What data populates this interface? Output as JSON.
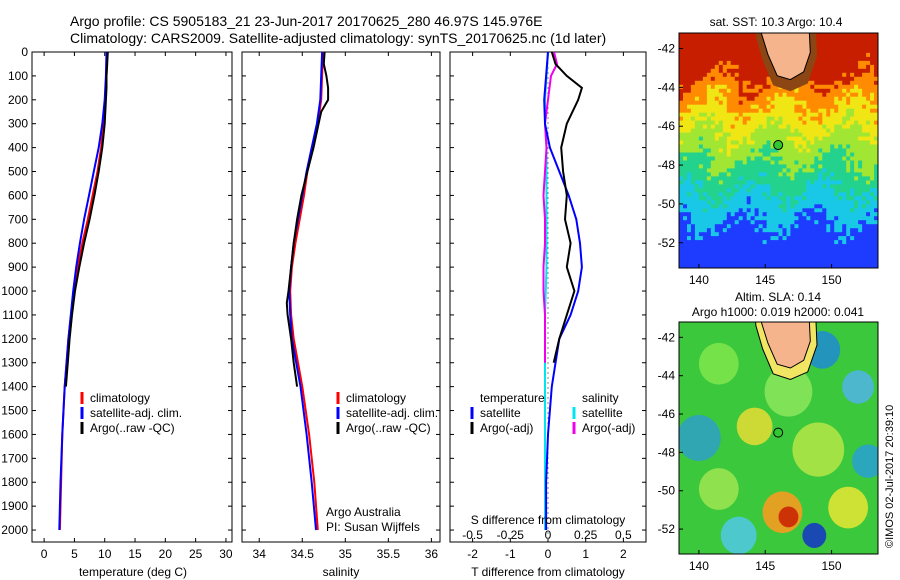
{
  "header": {
    "line1": "Argo profile: CS 5905183_21 23-Jun-2017 20170625_280 46.97S 145.976E",
    "line2": "Climatology: CARS2009. Satellite-adjusted climatology: synTS_20170625.nc (1d later)"
  },
  "watermark": "©IMOS 02-Jul-2017 20:39:10",
  "credit": {
    "line1": "Argo Australia",
    "line2": "PI: Susan Wijffels"
  },
  "colors": {
    "climatology": "#ff0000",
    "satellite": "#0000ff",
    "argo": "#000000",
    "sat_salinity": "#00e5ee",
    "argo_salinity": "#ee00ee"
  },
  "chart_data": [
    {
      "type": "line",
      "xlabel": "temperature (deg C)",
      "ylabel": "",
      "xlim": [
        -2,
        31
      ],
      "ylim": [
        2050,
        0
      ],
      "x_ticks": [
        "0",
        "5",
        "10",
        "15",
        "20",
        "25",
        "30"
      ],
      "y_ticks": [
        "0",
        "100",
        "200",
        "300",
        "400",
        "500",
        "600",
        "700",
        "800",
        "900",
        "1000",
        "1100",
        "1200",
        "1300",
        "1400",
        "1500",
        "1600",
        "1700",
        "1800",
        "1900",
        "2000"
      ],
      "legend": [
        "climatology",
        "satellite-adj. clim.",
        "Argo(..raw -QC)"
      ],
      "series": [
        {
          "name": "climatology",
          "depth": [
            0,
            100,
            200,
            300,
            400,
            500,
            600,
            700,
            800,
            900,
            1000,
            1200,
            1400,
            1600,
            1800,
            2000
          ],
          "values": [
            10.4,
            10.3,
            10.1,
            9.8,
            9.4,
            8.8,
            8.0,
            7.2,
            6.3,
            5.5,
            4.9,
            4.0,
            3.4,
            3.0,
            2.8,
            2.6
          ]
        },
        {
          "name": "satellite-adj. clim.",
          "depth": [
            0,
            100,
            200,
            300,
            400,
            500,
            600,
            700,
            800,
            900,
            1000,
            1200,
            1400,
            1600,
            1800,
            2000
          ],
          "values": [
            10.3,
            10.2,
            10.0,
            9.6,
            9.0,
            8.2,
            7.4,
            6.6,
            5.9,
            5.3,
            4.8,
            4.0,
            3.4,
            3.0,
            2.7,
            2.5
          ]
        },
        {
          "name": "Argo(..raw -QC)",
          "depth": [
            0,
            50,
            100,
            150,
            200,
            300,
            400,
            500,
            600,
            700,
            800,
            900,
            1000,
            1100,
            1200,
            1300,
            1400
          ],
          "values": [
            10.5,
            10.4,
            10.3,
            10.3,
            10.2,
            10.0,
            9.6,
            9.0,
            8.3,
            7.5,
            6.6,
            5.8,
            5.1,
            4.6,
            4.2,
            3.9,
            3.6
          ]
        }
      ]
    },
    {
      "type": "line",
      "xlabel": "salinity",
      "ylabel": "",
      "xlim": [
        33.8,
        36.1
      ],
      "ylim": [
        2050,
        0
      ],
      "x_ticks": [
        "34",
        "34.5",
        "35",
        "35.5",
        "36"
      ],
      "legend": [
        "climatology",
        "satellite-adj. clim.",
        "Argo(..raw -QC)"
      ],
      "series": [
        {
          "name": "climatology",
          "depth": [
            0,
            100,
            200,
            300,
            400,
            500,
            600,
            700,
            800,
            900,
            1000,
            1100,
            1200,
            1300,
            1400,
            1600,
            1800,
            2000
          ],
          "values": [
            34.74,
            34.73,
            34.72,
            34.68,
            34.62,
            34.56,
            34.52,
            34.47,
            34.42,
            34.38,
            34.36,
            34.37,
            34.4,
            34.45,
            34.5,
            34.58,
            34.64,
            34.68
          ]
        },
        {
          "name": "satellite-adj. clim.",
          "depth": [
            0,
            100,
            200,
            300,
            400,
            500,
            600,
            700,
            800,
            900,
            1000,
            1100,
            1200,
            1300,
            1400,
            1600,
            1800,
            2000
          ],
          "values": [
            34.73,
            34.72,
            34.71,
            34.67,
            34.61,
            34.55,
            34.5,
            34.45,
            34.4,
            34.37,
            34.35,
            34.36,
            34.38,
            34.43,
            34.48,
            34.55,
            34.61,
            34.66
          ]
        },
        {
          "name": "Argo(..raw -QC)",
          "depth": [
            0,
            50,
            100,
            150,
            200,
            250,
            300,
            400,
            500,
            600,
            700,
            800,
            900,
            1000,
            1050,
            1100,
            1200,
            1300,
            1400
          ],
          "values": [
            34.76,
            34.75,
            34.78,
            34.8,
            34.8,
            34.72,
            34.69,
            34.63,
            34.56,
            34.49,
            34.44,
            34.4,
            34.37,
            34.34,
            34.32,
            34.33,
            34.37,
            34.4,
            34.44
          ]
        }
      ]
    },
    {
      "type": "line",
      "xlabel": "T difference from climatology",
      "xlabel_top": "S difference from climatology",
      "xlim": [
        -2.6,
        2.6
      ],
      "ylim": [
        2050,
        0
      ],
      "x_ticks": [
        "-2",
        "-1",
        "0",
        "1",
        "2"
      ],
      "x_ticks_top": [
        "-0.5",
        "-0.25",
        "0",
        "0.25",
        "0.5"
      ],
      "legend_left": {
        "title": "temperature",
        "items": [
          "satellite",
          "Argo(-adj)"
        ]
      },
      "legend_right": {
        "title": "salinity",
        "items": [
          "satellite",
          "Argo(-adj)"
        ]
      },
      "series": [
        {
          "name": "temperature satellite",
          "depth": [
            0,
            100,
            200,
            300,
            400,
            500,
            600,
            700,
            800,
            900,
            1000,
            1100,
            1200,
            1400,
            1600,
            1800,
            2000
          ],
          "values": [
            0.0,
            -0.05,
            -0.1,
            -0.08,
            0.05,
            0.3,
            0.55,
            0.75,
            0.85,
            0.9,
            0.8,
            0.6,
            0.3,
            0.1,
            0.0,
            -0.05,
            -0.05
          ]
        },
        {
          "name": "temperature Argo(-adj)",
          "depth": [
            0,
            50,
            100,
            150,
            200,
            300,
            400,
            500,
            600,
            700,
            800,
            900,
            1000,
            1100,
            1200,
            1300
          ],
          "values": [
            0.1,
            0.2,
            0.5,
            0.9,
            0.8,
            0.5,
            0.35,
            0.4,
            0.5,
            0.45,
            0.6,
            0.5,
            0.7,
            0.5,
            0.3,
            0.15
          ]
        },
        {
          "name": "salinity satellite",
          "depth": [
            0,
            100,
            200,
            300,
            400,
            500,
            700,
            900,
            1100,
            1300,
            1500,
            1700,
            1900,
            2000
          ],
          "values": [
            0.0,
            -0.01,
            -0.02,
            -0.02,
            -0.01,
            -0.01,
            -0.01,
            -0.01,
            -0.02,
            -0.02,
            -0.02,
            -0.02,
            -0.02,
            -0.02
          ]
        },
        {
          "name": "salinity Argo(-adj)",
          "depth": [
            0,
            50,
            100,
            200,
            300,
            400,
            500,
            600,
            700,
            800,
            900,
            1000,
            1100,
            1200,
            1300
          ],
          "values": [
            0.04,
            0.06,
            0.02,
            0.0,
            -0.02,
            -0.01,
            -0.02,
            -0.03,
            -0.02,
            -0.02,
            -0.03,
            -0.03,
            -0.02,
            -0.02,
            -0.02
          ]
        }
      ]
    },
    {
      "type": "heatmap",
      "title": "sat. SST: 10.3  Argo: 10.4",
      "x_ticks": [
        "140",
        "145",
        "150"
      ],
      "y_ticks": [
        "-42",
        "-44",
        "-46",
        "-48",
        "-50",
        "-52"
      ],
      "xlim": [
        138.5,
        153.5
      ],
      "ylim": [
        -53.3,
        -41.2
      ],
      "marker": {
        "lon": 145.976,
        "lat": -46.97
      }
    },
    {
      "type": "heatmap",
      "title_line1": "Altim. SLA: 0.14",
      "title_line2": "Argo h1000: 0.019  h2000: 0.041",
      "x_ticks": [
        "140",
        "145",
        "150"
      ],
      "y_ticks": [
        "-42",
        "-44",
        "-46",
        "-48",
        "-50",
        "-52"
      ],
      "xlim": [
        138.5,
        153.5
      ],
      "ylim": [
        -53.3,
        -41.2
      ],
      "marker": {
        "lon": 145.976,
        "lat": -46.97
      }
    }
  ]
}
